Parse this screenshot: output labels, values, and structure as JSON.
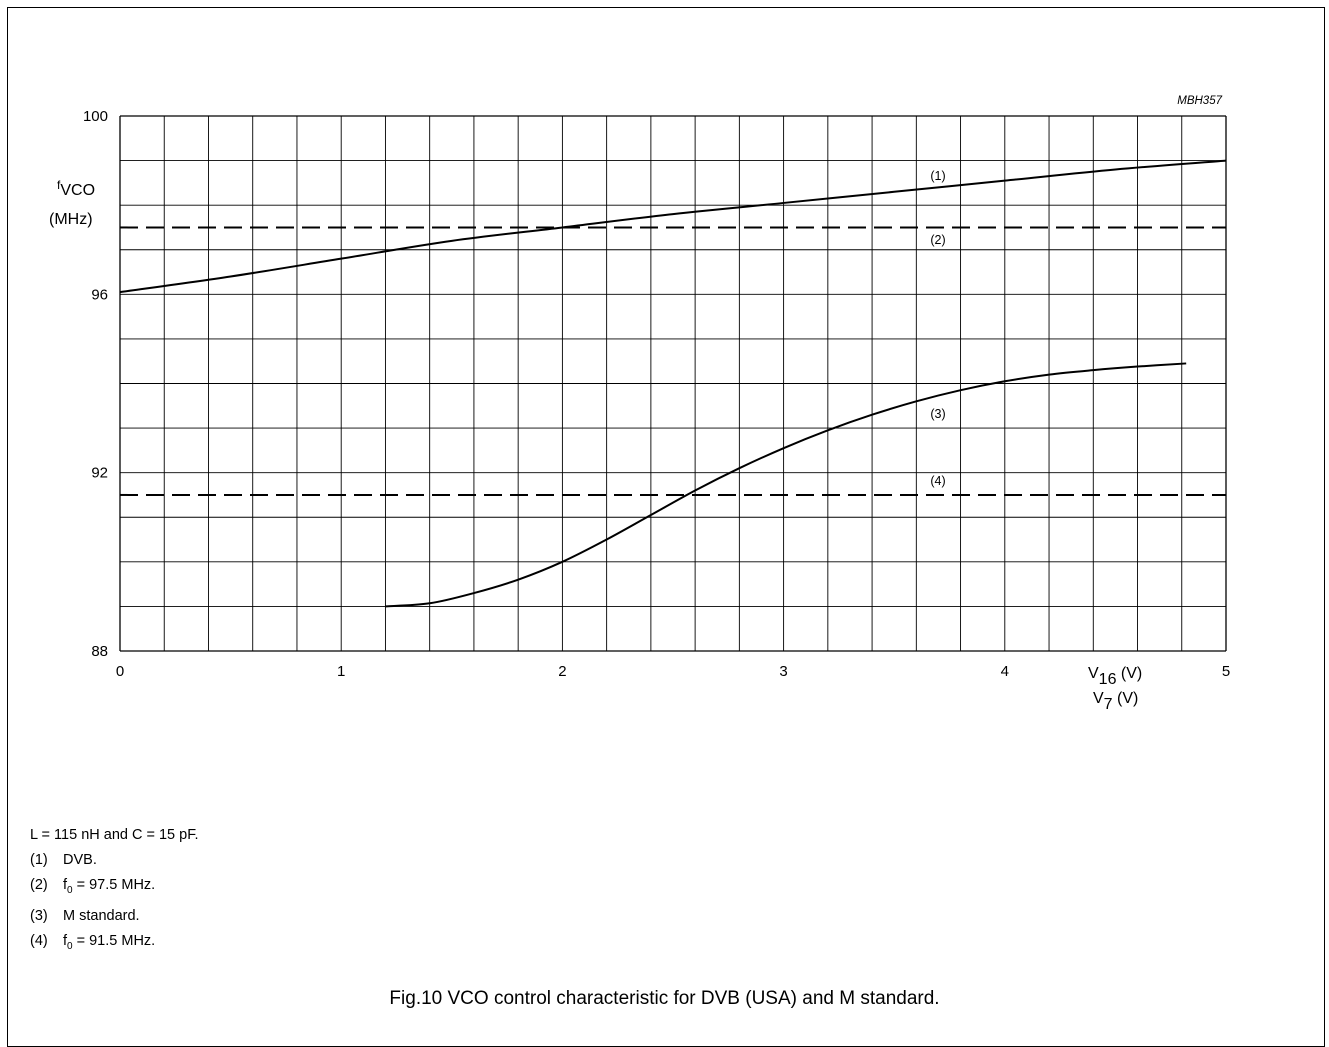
{
  "chart_data": {
    "type": "line",
    "figure_code": "MBH357",
    "y_label_main": "f",
    "y_label_sub": "VCO",
    "y_label_unit": "(MHz)",
    "xlim": [
      0,
      5
    ],
    "ylim": [
      88,
      100
    ],
    "x_ticks": [
      "0",
      "1",
      "2",
      "3",
      "4",
      "5"
    ],
    "y_ticks": [
      "88",
      "92",
      "96",
      "100"
    ],
    "x_label_1_main": "V",
    "x_label_1_sub": "16",
    "x_label_1_unit": " (V)",
    "x_label_2_main": "V",
    "x_label_2_sub": "7",
    "x_label_2_unit": " (V)",
    "grid": true,
    "series": [
      {
        "name": "(1)",
        "style": "solid",
        "x": [
          0,
          0.5,
          1.0,
          1.5,
          2.0,
          2.5,
          3.0,
          3.5,
          4.0,
          4.5,
          5.0
        ],
        "y": [
          96.05,
          96.4,
          96.8,
          97.2,
          97.5,
          97.8,
          98.05,
          98.3,
          98.55,
          98.8,
          99.0
        ]
      },
      {
        "name": "(2)",
        "style": "dashed",
        "x": [
          0,
          5
        ],
        "y": [
          97.5,
          97.5
        ]
      },
      {
        "name": "(3)",
        "style": "solid",
        "x": [
          1.2,
          1.4,
          1.6,
          1.8,
          2.0,
          2.2,
          2.4,
          2.6,
          2.8,
          3.0,
          3.2,
          3.4,
          3.6,
          3.8,
          4.0,
          4.2,
          4.4,
          4.6,
          4.82
        ],
        "y": [
          89.0,
          89.07,
          89.3,
          89.6,
          90.0,
          90.5,
          91.05,
          91.6,
          92.1,
          92.55,
          92.95,
          93.3,
          93.6,
          93.85,
          94.05,
          94.2,
          94.3,
          94.38,
          94.45
        ]
      },
      {
        "name": "(4)",
        "style": "dashed",
        "x": [
          0,
          5
        ],
        "y": [
          91.5,
          91.5
        ]
      }
    ]
  },
  "notes": [
    {
      "num": "",
      "text": "L = 115 nH and C = 15 pF."
    },
    {
      "num": "(1)",
      "text": "DVB."
    },
    {
      "num": "(2)",
      "text_main": "f",
      "text_sub": "0",
      "text_rest": " = 97.5 MHz."
    },
    {
      "num": "(3)",
      "text": "M standard."
    },
    {
      "num": "(4)",
      "text_main": "f",
      "text_sub": "0",
      "text_rest": " = 91.5 MHz."
    }
  ],
  "caption": "Fig.10  VCO control characteristic for DVB (USA) and M standard."
}
